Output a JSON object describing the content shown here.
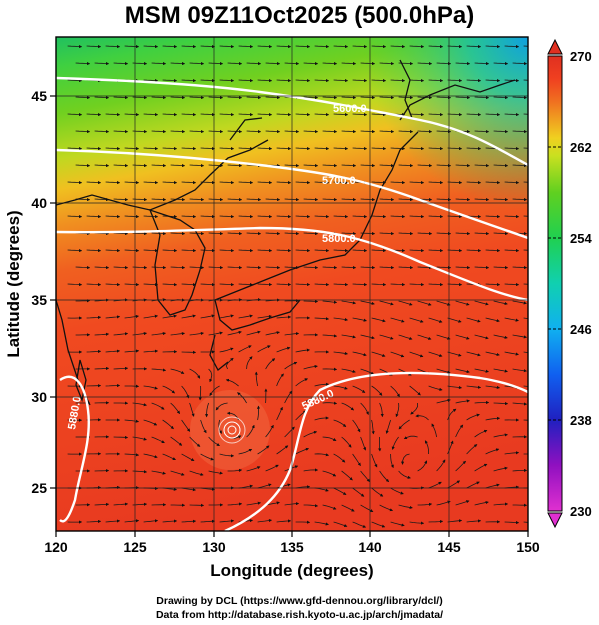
{
  "title": "MSM 09Z11Oct2025 (500.0hPa)",
  "x_axis": {
    "label": "Longitude (degrees)",
    "ticks": [
      "120",
      "125",
      "130",
      "135",
      "140",
      "145",
      "150"
    ]
  },
  "y_axis": {
    "label": "Latitude  (degrees)",
    "ticks": [
      "25",
      "30",
      "35",
      "40",
      "45"
    ]
  },
  "colorbar": {
    "ticks": [
      "270",
      "262",
      "254",
      "246",
      "238",
      "230"
    ],
    "min": 230,
    "max": 270,
    "colors": [
      "#e030d0",
      "#9010c0",
      "#2020c0",
      "#1060f0",
      "#10b0f0",
      "#10d0b0",
      "#20d050",
      "#60d020",
      "#c8e020",
      "#f0d020",
      "#f0a020",
      "#f07020",
      "#f04020",
      "#e03020"
    ]
  },
  "contours": [
    {
      "label": "5600.0"
    },
    {
      "label": "5700.0"
    },
    {
      "label": "5800.0"
    },
    {
      "label": "5880.0"
    },
    {
      "label": "5880.0"
    }
  ],
  "credits": {
    "line1": "Drawing by DCL (https://www.gfd-dennou.org/library/dcl/)",
    "line2": "Data from http://database.rish.kyoto-u.ac.jp/arch/jmadata/"
  },
  "chart_data": {
    "type": "heatmap",
    "title": "MSM 09Z11Oct2025 (500.0hPa)",
    "xlabel": "Longitude (degrees)",
    "ylabel": "Latitude  (degrees)",
    "xlim": [
      120,
      150
    ],
    "ylim": [
      22.5,
      47.5
    ],
    "colorbar_range": [
      230,
      270
    ],
    "grid": true,
    "overlays": [
      "temperature shading",
      "streamlines",
      "geopotential height contours",
      "coastlines"
    ]
  }
}
